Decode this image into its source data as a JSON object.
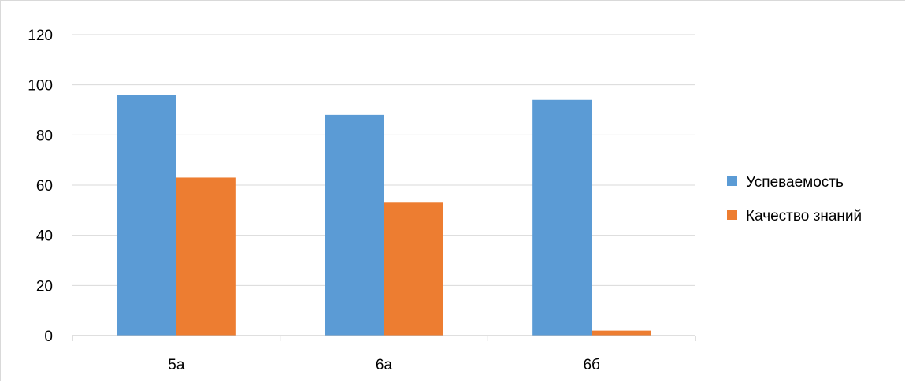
{
  "chart_data": {
    "type": "bar",
    "title": "",
    "xlabel": "",
    "ylabel": "",
    "categories": [
      "5а",
      "6а",
      "6б"
    ],
    "series": [
      {
        "name": "Успеваемость",
        "color": "#5b9bd5",
        "values": [
          96,
          88,
          94
        ]
      },
      {
        "name": "Качество знаний",
        "color": "#ed7d31",
        "values": [
          63,
          53,
          2
        ]
      }
    ],
    "ylim": [
      0,
      120
    ],
    "yticks": [
      "0",
      "20",
      "40",
      "60",
      "80",
      "100",
      "120"
    ],
    "grid": true,
    "legend": "right"
  }
}
